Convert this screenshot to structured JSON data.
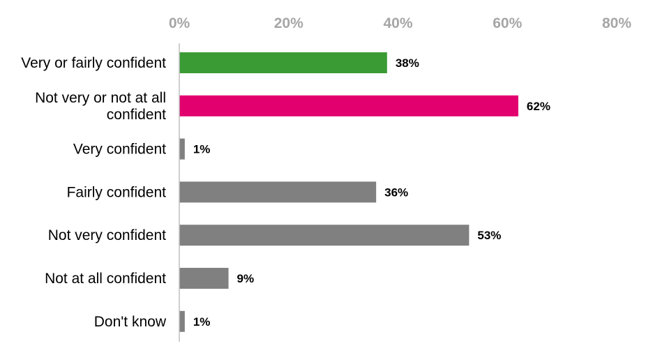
{
  "chart_data": {
    "type": "bar",
    "orientation": "horizontal",
    "categories": [
      [
        "Very or fairly confident"
      ],
      [
        "Not very or not at all",
        "confident"
      ],
      [
        "Very confident"
      ],
      [
        "Fairly confident"
      ],
      [
        "Not very confident"
      ],
      [
        "Not at all confident"
      ],
      [
        "Don't know"
      ]
    ],
    "values": [
      38,
      62,
      1,
      36,
      53,
      9,
      1
    ],
    "value_labels": [
      "38%",
      "62%",
      "1%",
      "36%",
      "53%",
      "9%",
      "1%"
    ],
    "colors": [
      "#3a9b34",
      "#e2006f",
      "#808080",
      "#808080",
      "#808080",
      "#808080",
      "#808080"
    ],
    "x_ticks": [
      0,
      20,
      40,
      60,
      80
    ],
    "x_tick_labels": [
      "0%",
      "20%",
      "40%",
      "60%",
      "80%"
    ],
    "xlim": [
      0,
      80
    ],
    "axis_position": "top",
    "grid": false,
    "legend": "none",
    "title": "",
    "xlabel": "",
    "ylabel": ""
  }
}
